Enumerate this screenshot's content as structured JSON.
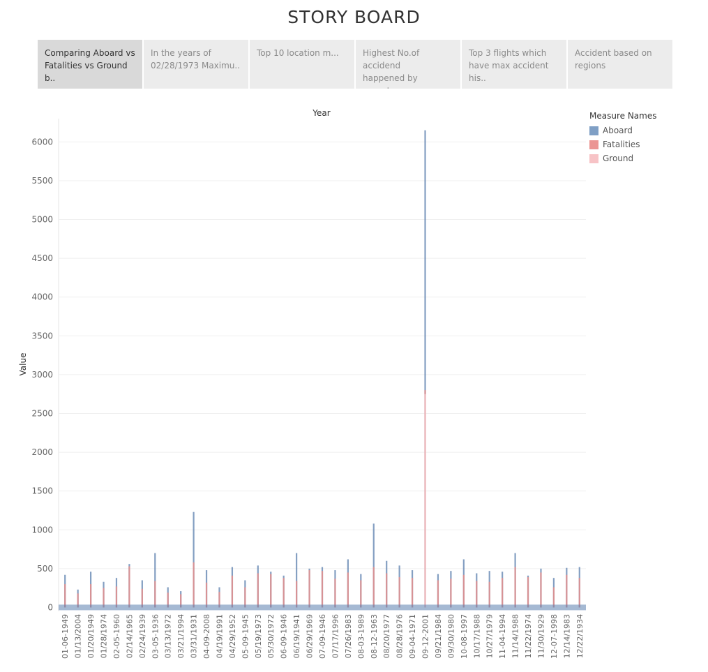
{
  "page": {
    "title": "STORY BOARD"
  },
  "tabs": [
    {
      "line1": "Comparing Aboard vs",
      "line2": "Fatalities vs Ground b..",
      "active": true
    },
    {
      "line1": "In the years of",
      "line2": "02/28/1973 Maximu..",
      "active": false
    },
    {
      "line1": "Top 10 location m...",
      "line2": "",
      "active": false
    },
    {
      "line1": "Highest No.of accidend",
      "line2": "happened by operators",
      "active": false
    },
    {
      "line1": "Top 3 flights which",
      "line2": "have max accident his..",
      "active": false
    },
    {
      "line1": "Accident based on",
      "line2": "regions",
      "active": false
    }
  ],
  "legend": {
    "title": "Measure Names",
    "items": [
      {
        "label": "Aboard",
        "color": "#7f9fc5"
      },
      {
        "label": "Fatalities",
        "color": "#eb9593"
      },
      {
        "label": "Ground",
        "color": "#f7c3c6"
      }
    ]
  },
  "chart_data": {
    "type": "bar",
    "title": "",
    "xlabel": "Year",
    "ylabel": "Value",
    "ylim": [
      -50,
      6300
    ],
    "yticks": [
      0,
      500,
      1000,
      1500,
      2000,
      2500,
      3000,
      3500,
      4000,
      4500,
      5000,
      5500,
      6000
    ],
    "grid": true,
    "legend_position": "right",
    "categories": [
      "01-06-1949",
      "01/13/2004",
      "01/20/1949",
      "01/28/1974",
      "02-05-1960",
      "02/14/1965",
      "02/24/1939",
      "03-05-1936",
      "03/13/1972",
      "03/21/1994",
      "03/31/1931",
      "04-09-2008",
      "04/19/1991",
      "04/29/1952",
      "05-09-1945",
      "05/19/1973",
      "05/30/1972",
      "06-09-1946",
      "06/19/1941",
      "06/29/1969",
      "07-09-1946",
      "07/17/1996",
      "07/26/1983",
      "08-03-1989",
      "08-12-1963",
      "08/20/1977",
      "08/28/1976",
      "09-04-1971",
      "09-12-2001",
      "09/21/1984",
      "09/30/1980",
      "10-08-1997",
      "10/17/1988",
      "10/27/1979",
      "11-04-1994",
      "11/14/1988",
      "11/22/1974",
      "11/30/1929",
      "12-07-1998",
      "12/14/1983",
      "12/22/1934"
    ],
    "series": [
      {
        "name": "Aboard",
        "color": "#5b7fae",
        "values": [
          420,
          230,
          460,
          330,
          380,
          560,
          350,
          700,
          260,
          210,
          1230,
          480,
          260,
          520,
          350,
          540,
          460,
          410,
          700,
          500,
          520,
          480,
          620,
          430,
          1080,
          600,
          540,
          480,
          6150,
          430,
          470,
          620,
          440,
          470,
          460,
          700,
          410,
          500,
          380,
          510,
          520
        ]
      },
      {
        "name": "Fatalities",
        "color": "#e58f8d",
        "values": [
          300,
          180,
          300,
          250,
          270,
          530,
          240,
          340,
          190,
          170,
          580,
          320,
          200,
          410,
          260,
          440,
          430,
          380,
          340,
          480,
          470,
          370,
          450,
          350,
          520,
          440,
          390,
          380,
          2800,
          350,
          370,
          420,
          340,
          330,
          380,
          520,
          390,
          450,
          260,
          420,
          380
        ]
      },
      {
        "name": "Ground",
        "color": "#f7c3c6",
        "values": [
          0,
          0,
          0,
          0,
          0,
          0,
          0,
          0,
          0,
          0,
          0,
          0,
          0,
          0,
          0,
          0,
          0,
          0,
          0,
          0,
          0,
          0,
          0,
          0,
          0,
          0,
          0,
          0,
          2750,
          0,
          0,
          0,
          0,
          0,
          0,
          0,
          0,
          0,
          0,
          0,
          0
        ]
      }
    ]
  }
}
